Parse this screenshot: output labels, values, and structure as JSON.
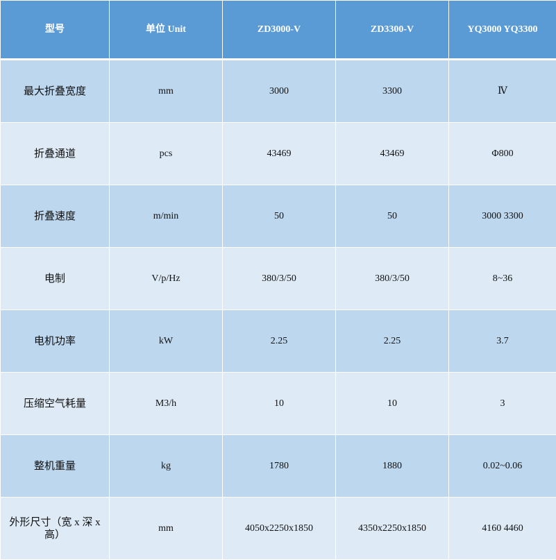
{
  "colors": {
    "header": "#5b9bd5",
    "row_dark": "#bdd7ee",
    "row_light": "#deebf7"
  },
  "headers": [
    "型号",
    "单位 Unit",
    "ZD3000-V",
    "ZD3300-V",
    "YQ3000 YQ3300"
  ],
  "rows": [
    [
      "最大折叠宽度",
      "mm",
      "3000",
      "3300",
      "Ⅳ"
    ],
    [
      "折叠通道",
      "pcs",
      "43469",
      "43469",
      "Φ800"
    ],
    [
      "折叠速度",
      "m/min",
      "50",
      "50",
      "3000 3300"
    ],
    [
      "电制",
      "V/p/Hz",
      "380/3/50",
      "380/3/50",
      "8~36"
    ],
    [
      "电机功率",
      "kW",
      "2.25",
      "2.25",
      "3.7"
    ],
    [
      "压缩空气耗量",
      "M3/h",
      "10",
      "10",
      "3"
    ],
    [
      "整机重量",
      "kg",
      "1780",
      "1880",
      "0.02~0.06"
    ],
    [
      "外形尺寸（宽 x 深 x 高）",
      "mm",
      "4050x2250x1850",
      "4350x2250x1850",
      "4160 4460"
    ]
  ]
}
